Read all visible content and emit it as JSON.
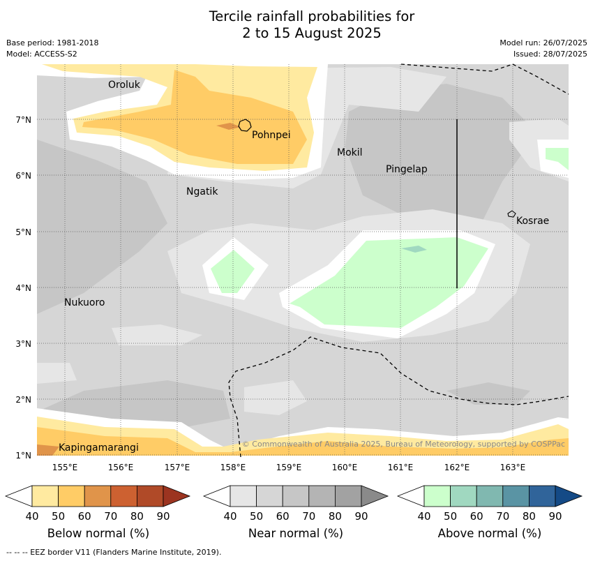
{
  "title": {
    "line1": "Tercile rainfall probabilities for",
    "line2": "2 to 15 August 2025"
  },
  "meta": {
    "base_period": "Base period: 1981-2018",
    "model": "Model: ACCESS-S2",
    "model_run": "Model run: 26/07/2025",
    "issued": "Issued: 28/07/2025"
  },
  "map": {
    "lat_ticks": [
      "1°N",
      "2°N",
      "3°N",
      "4°N",
      "5°N",
      "6°N",
      "7°N"
    ],
    "lon_ticks": [
      "155°E",
      "156°E",
      "157°E",
      "158°E",
      "159°E",
      "160°E",
      "161°E",
      "162°E",
      "163°E"
    ],
    "places": [
      {
        "name": "Oroluk"
      },
      {
        "name": "Pohnpei"
      },
      {
        "name": "Mokil"
      },
      {
        "name": "Pingelap"
      },
      {
        "name": "Ngatik"
      },
      {
        "name": "Kosrae"
      },
      {
        "name": "Nukuoro"
      },
      {
        "name": "Kapingamarangi"
      }
    ],
    "copyright": "© Commonwealth of Australia 2025, Bureau of Meteorology, supported by COSPPac"
  },
  "colorbars": [
    {
      "label": "Below normal (%)",
      "ticks": [
        "40",
        "50",
        "60",
        "70",
        "80",
        "90"
      ],
      "colors": [
        "#ffffff",
        "#ffeaa0",
        "#ffcc66",
        "#e0944a",
        "#cd6131",
        "#b04a28",
        "#9c3420"
      ]
    },
    {
      "label": "Near normal (%)",
      "ticks": [
        "40",
        "50",
        "60",
        "70",
        "80",
        "90"
      ],
      "colors": [
        "#ffffff",
        "#e6e6e6",
        "#d6d6d6",
        "#c6c6c6",
        "#b4b4b4",
        "#a2a2a2",
        "#8a8a8a"
      ]
    },
    {
      "label": "Above normal (%)",
      "ticks": [
        "40",
        "50",
        "60",
        "70",
        "80",
        "90"
      ],
      "colors": [
        "#ffffff",
        "#ccffcc",
        "#a0d8c0",
        "#80b8b0",
        "#5a94a4",
        "#30649a",
        "#144a86"
      ]
    }
  ],
  "footnote": "--  --  -- EEZ border V11 (Flanders Marine Institute, 2019)."
}
